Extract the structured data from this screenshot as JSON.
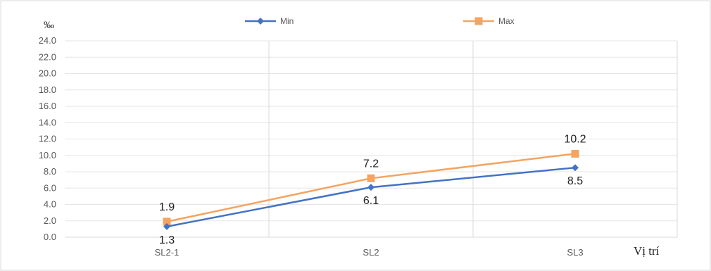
{
  "chart_data": {
    "type": "line",
    "categories": [
      "SL2-1",
      "SL2",
      "SL3"
    ],
    "series": [
      {
        "name": "Min",
        "values": [
          1.3,
          6.1,
          8.5
        ],
        "color": "#4472C4",
        "marker": "diamond"
      },
      {
        "name": "Max",
        "values": [
          1.9,
          7.2,
          10.2
        ],
        "color": "#F4A460",
        "marker": "square"
      }
    ],
    "y_unit": "‰",
    "xlabel": "Vị trí",
    "ylim": [
      0,
      24
    ],
    "y_ticks": [
      "0.0",
      "2.0",
      "4.0",
      "6.0",
      "8.0",
      "10.0",
      "12.0",
      "14.0",
      "16.0",
      "18.0",
      "20.0",
      "22.0",
      "24.0"
    ],
    "data_labels": {
      "Min": [
        "1.3",
        "6.1",
        "8.5"
      ],
      "Max": [
        "1.9",
        "7.2",
        "10.2"
      ]
    },
    "grid": true,
    "legend_position": "top"
  }
}
